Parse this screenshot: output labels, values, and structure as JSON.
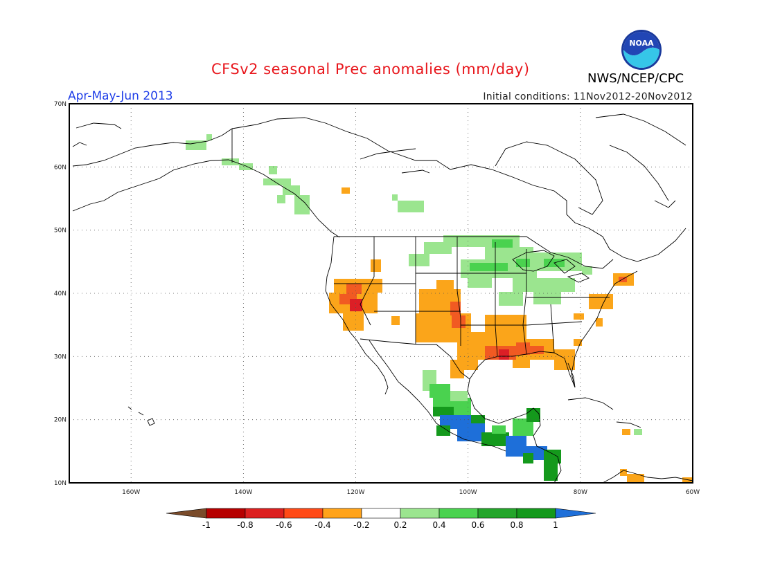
{
  "header": {
    "title": "CFSv2 seasonal Prec anomalies (mm/day)",
    "agency": "NWS/NCEP/CPC",
    "period": "Apr-May-Jun 2013",
    "initial_conditions": "Initial conditions: 11Nov2012-20Nov2012",
    "logo_text": "NOAA"
  },
  "map": {
    "lat_labels": [
      "70N",
      "60N",
      "50N",
      "40N",
      "30N",
      "20N",
      "10N"
    ],
    "lon_labels": [
      "160W",
      "140W",
      "120W",
      "100W",
      "80W",
      "60W"
    ],
    "colors": {
      "land_line": "#000000",
      "grid": "#555555",
      "orange": "#fba51a",
      "light_orange": "#fbb040",
      "orange_red": "#f15a22",
      "red": "#dc1f26",
      "light_green": "#9be58f",
      "green": "#4ad24f",
      "dark_green": "#23a52a",
      "darker_green": "#14991c",
      "blue": "#1e6fd9"
    }
  },
  "colorbar": {
    "labels": [
      "-1",
      "-0.8",
      "-0.6",
      "-0.4",
      "-0.2",
      "0.2",
      "0.4",
      "0.6",
      "0.8",
      "1"
    ],
    "colors": [
      "#7a4b2a",
      "#b60000",
      "#dc1f1f",
      "#ff4a17",
      "#ffa31a",
      "#ffffff",
      "#9be58f",
      "#4ad24f",
      "#23a52a",
      "#14991c",
      "#1e6fd9"
    ]
  }
}
